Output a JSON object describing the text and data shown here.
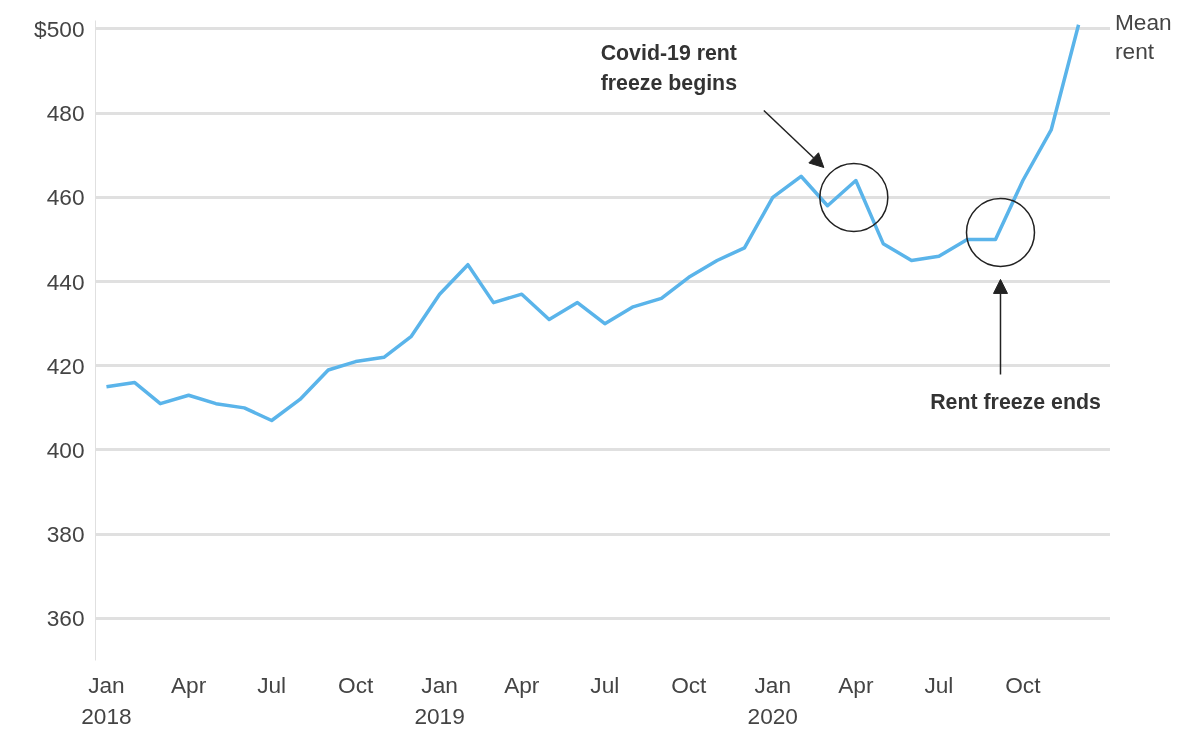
{
  "chart_data": {
    "type": "line",
    "x": [
      "2018-01",
      "2018-02",
      "2018-03",
      "2018-04",
      "2018-05",
      "2018-06",
      "2018-07",
      "2018-08",
      "2018-09",
      "2018-10",
      "2018-11",
      "2018-12",
      "2019-01",
      "2019-02",
      "2019-03",
      "2019-04",
      "2019-05",
      "2019-06",
      "2019-07",
      "2019-08",
      "2019-09",
      "2019-10",
      "2019-11",
      "2019-12",
      "2020-01",
      "2020-02",
      "2020-03",
      "2020-04",
      "2020-05",
      "2020-06",
      "2020-07",
      "2020-08",
      "2020-09",
      "2020-10",
      "2020-11",
      "2020-12"
    ],
    "series": [
      {
        "name": "Mean rent",
        "color": "#5ab4ea",
        "values": [
          415,
          416,
          411,
          413,
          411,
          410,
          407,
          412,
          419,
          421,
          422,
          427,
          437,
          444,
          435,
          437,
          431,
          435,
          430,
          434,
          436,
          441,
          445,
          448,
          460,
          465,
          458,
          464,
          449,
          445,
          446,
          450,
          450,
          464,
          476,
          501
        ]
      }
    ],
    "xlim": [
      "2017-12-20",
      "2021-01-05"
    ],
    "xticks": [
      {
        "value": "2018-01",
        "label": "Jan\n2018"
      },
      {
        "value": "2018-04",
        "label": "Apr"
      },
      {
        "value": "2018-07",
        "label": "Jul"
      },
      {
        "value": "2018-10",
        "label": "Oct"
      },
      {
        "value": "2019-01",
        "label": "Jan\n2019"
      },
      {
        "value": "2019-04",
        "label": "Apr"
      },
      {
        "value": "2019-07",
        "label": "Jul"
      },
      {
        "value": "2019-10",
        "label": "Oct"
      },
      {
        "value": "2020-01",
        "label": "Jan\n2020"
      },
      {
        "value": "2020-04",
        "label": "Apr"
      },
      {
        "value": "2020-07",
        "label": "Jul"
      },
      {
        "value": "2020-10",
        "label": "Oct"
      }
    ],
    "ylim": [
      350,
      502
    ],
    "yticks": [
      360,
      380,
      400,
      420,
      440,
      460,
      480,
      {
        "value": 500,
        "label": "$500"
      }
    ],
    "grid": "y",
    "legend": false,
    "marker": "none",
    "line_style": "solid",
    "annotations": [
      "Covid-19 rent\nfreeze begins",
      "Rent freeze ends"
    ]
  }
}
